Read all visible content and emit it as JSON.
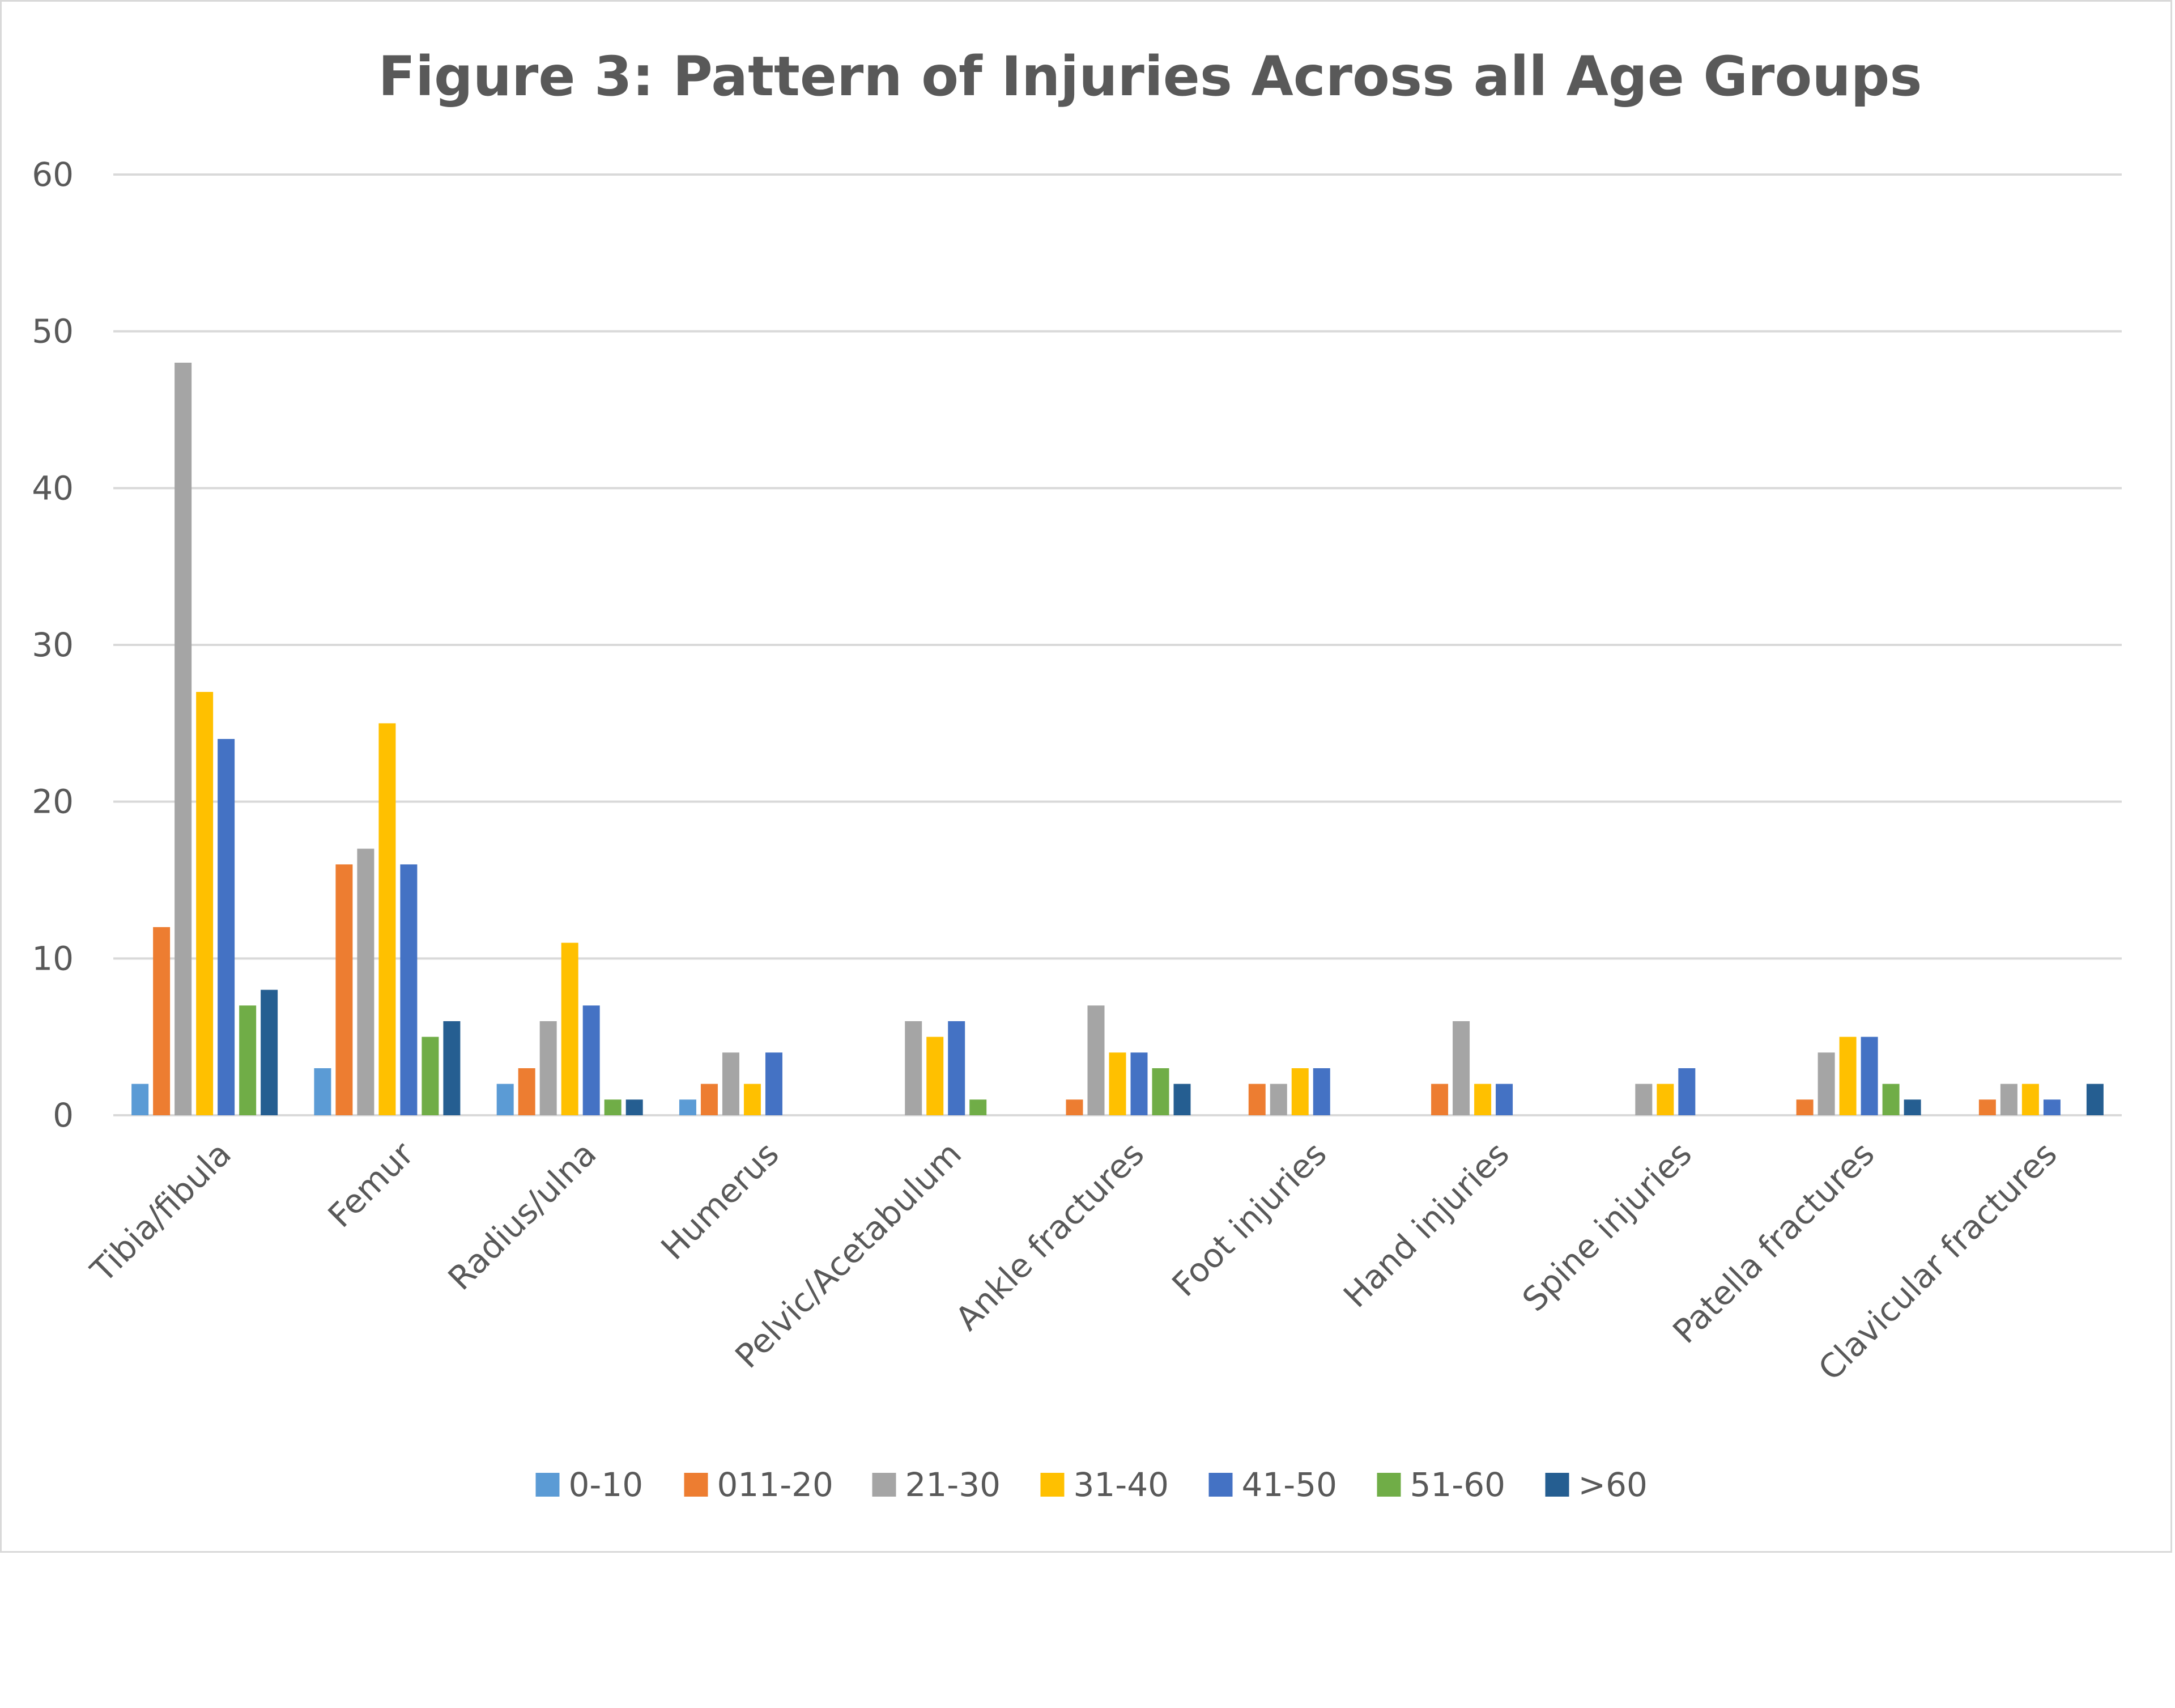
{
  "chart_data": {
    "type": "bar",
    "title": "Figure 3: Pattern of Injuries Across all Age Groups",
    "xlabel": "",
    "ylabel": "",
    "ylim": [
      0,
      60
    ],
    "yticks": [
      "0",
      "10",
      "20",
      "30",
      "40",
      "50",
      "60"
    ],
    "grid": true,
    "legend_position": "bottom",
    "categories": [
      "Tibia/fibula",
      "Femur",
      "Radius/ulna",
      "Humerus",
      "Pelvic/Acetabulum",
      "Ankle fractures",
      "Foot injuries",
      "Hand injuries",
      "Spine injuries",
      "Patella fractures",
      "Clavicular fractures"
    ],
    "series": [
      {
        "name": "0-10",
        "color": "#5B9BD5",
        "values": [
          2,
          3,
          2,
          1,
          0,
          0,
          0,
          0,
          0,
          0,
          0
        ]
      },
      {
        "name": "011-20",
        "color": "#ED7D31",
        "values": [
          12,
          16,
          3,
          2,
          0,
          1,
          2,
          2,
          0,
          1,
          1
        ]
      },
      {
        "name": "21-30",
        "color": "#A5A5A5",
        "values": [
          48,
          17,
          6,
          4,
          6,
          7,
          2,
          6,
          2,
          4,
          2
        ]
      },
      {
        "name": "31-40",
        "color": "#FFC000",
        "values": [
          27,
          25,
          11,
          2,
          5,
          4,
          3,
          2,
          2,
          5,
          2
        ]
      },
      {
        "name": "41-50",
        "color": "#4472C4",
        "values": [
          24,
          16,
          7,
          4,
          6,
          4,
          3,
          2,
          3,
          5,
          1
        ]
      },
      {
        "name": "51-60",
        "color": "#70AD47",
        "values": [
          7,
          5,
          1,
          0,
          1,
          3,
          0,
          0,
          0,
          2,
          0
        ]
      },
      {
        "name": ">60",
        "color": "#255E91",
        "values": [
          8,
          6,
          1,
          0,
          0,
          2,
          0,
          0,
          0,
          1,
          2
        ]
      }
    ]
  },
  "colors": {
    "gridline": "#d9d9d9",
    "text": "#595959",
    "frame": "#d9d9d9"
  }
}
